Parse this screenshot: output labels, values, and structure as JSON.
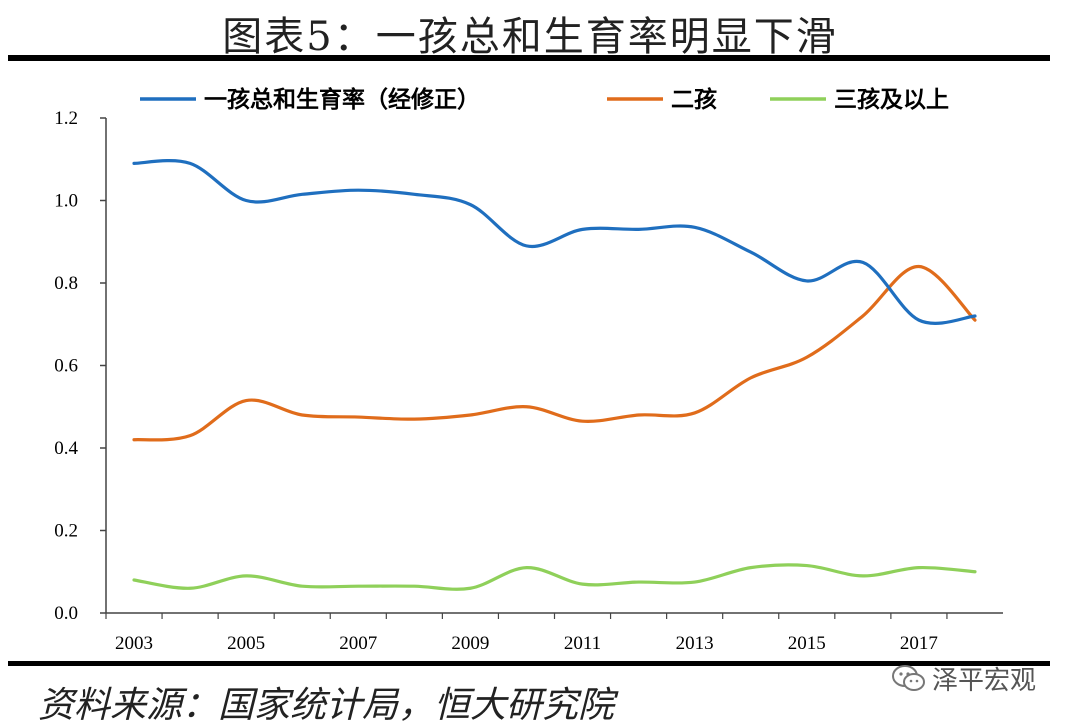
{
  "title": "图表5：一孩总和生育率明显下滑",
  "source": "资料来源：国家统计局，恒大研究院",
  "watermark": {
    "text": "泽平宏观",
    "icon": "wechat-icon"
  },
  "chart_data": {
    "type": "line",
    "title": "图表5：一孩总和生育率明显下滑",
    "xlabel": "",
    "ylabel": "",
    "x": [
      2003,
      2004,
      2005,
      2006,
      2007,
      2008,
      2009,
      2010,
      2011,
      2012,
      2013,
      2014,
      2015,
      2016,
      2017,
      2018
    ],
    "xlim": [
      2002.5,
      2018.5
    ],
    "ylim": [
      0,
      1.2
    ],
    "x_ticks": [
      "2003",
      "2005",
      "2007",
      "2009",
      "2011",
      "2013",
      "2015",
      "2017"
    ],
    "x_tick_values": [
      2003,
      2005,
      2007,
      2009,
      2011,
      2013,
      2015,
      2017
    ],
    "y_ticks": [
      "0.0",
      "0.2",
      "0.4",
      "0.6",
      "0.8",
      "1.0",
      "1.2"
    ],
    "y_tick_values": [
      0,
      0.2,
      0.4,
      0.6,
      0.8,
      1.0,
      1.2
    ],
    "legend_position": "top",
    "grid": false,
    "series": [
      {
        "name": "一孩总和生育率（经修正）",
        "color": "#1f6fbf",
        "values": [
          1.09,
          1.09,
          1.0,
          1.015,
          1.025,
          1.015,
          0.99,
          0.89,
          0.93,
          0.93,
          0.935,
          0.875,
          0.805,
          0.85,
          0.71,
          0.72
        ]
      },
      {
        "name": "二孩",
        "color": "#e06c1b",
        "values": [
          0.42,
          0.43,
          0.515,
          0.48,
          0.475,
          0.47,
          0.48,
          0.5,
          0.465,
          0.48,
          0.485,
          0.57,
          0.62,
          0.72,
          0.84,
          0.71
        ]
      },
      {
        "name": "三孩及以上",
        "color": "#8fd05a",
        "values": [
          0.08,
          0.06,
          0.09,
          0.065,
          0.065,
          0.065,
          0.06,
          0.11,
          0.07,
          0.075,
          0.075,
          0.11,
          0.115,
          0.09,
          0.11,
          0.1
        ]
      }
    ]
  }
}
